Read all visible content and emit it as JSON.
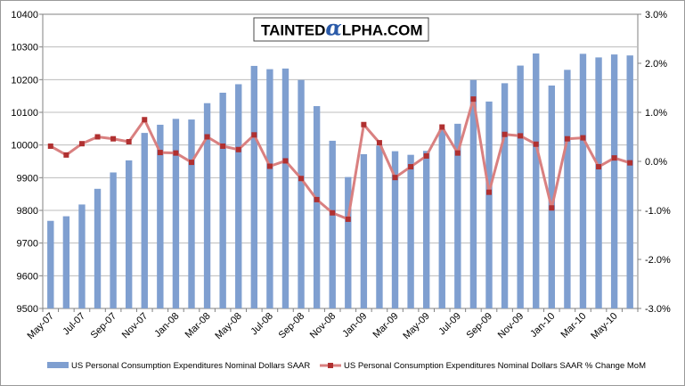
{
  "logo": {
    "part1": "TAINTED",
    "part2": "α",
    "part3": "LPHA.COM"
  },
  "chart_data": {
    "type": "bar+line",
    "title": "",
    "categories": [
      "May-07",
      "Jun-07",
      "Jul-07",
      "Aug-07",
      "Sep-07",
      "Oct-07",
      "Nov-07",
      "Dec-07",
      "Jan-08",
      "Feb-08",
      "Mar-08",
      "Apr-08",
      "May-08",
      "Jun-08",
      "Jul-08",
      "Aug-08",
      "Sep-08",
      "Oct-08",
      "Nov-08",
      "Dec-08",
      "Jan-09",
      "Feb-09",
      "Mar-09",
      "Apr-09",
      "May-09",
      "Jun-09",
      "Jul-09",
      "Aug-09",
      "Sep-09",
      "Oct-09",
      "Nov-09",
      "Dec-09",
      "Jan-10",
      "Feb-10",
      "Mar-10",
      "Apr-10",
      "May-10",
      "Jun-10"
    ],
    "x_tick_labels": [
      "May-07",
      "Jul-07",
      "Sep-07",
      "Nov-07",
      "Jan-08",
      "Mar-08",
      "May-08",
      "Jul-08",
      "Sep-08",
      "Nov-08",
      "Jan-09",
      "Mar-09",
      "May-09",
      "Jul-09",
      "Sep-09",
      "Nov-09",
      "Jan-10",
      "Mar-10",
      "May-10"
    ],
    "series": [
      {
        "name": "US Personal Consumption Expenditures Nominal Dollars SAAR",
        "type": "bar",
        "axis": "left",
        "color": "#7f9fd0",
        "values": [
          9768,
          9782,
          9818,
          9866,
          9916,
          9953,
          10037,
          10062,
          10080,
          10078,
          10128,
          10160,
          10186,
          10242,
          10232,
          10234,
          10199,
          10119,
          10013,
          9902,
          9972,
          9998,
          9981,
          9970,
          9982,
          10048,
          10065,
          10199,
          10133,
          10189,
          10243,
          10280,
          10182,
          10230,
          10279,
          10268,
          10277,
          10274
        ]
      },
      {
        "name": "US Personal Consumption Expenditures Nominal Dollars SAAR % Change MoM",
        "type": "line",
        "axis": "right",
        "color": "#d98080",
        "values": [
          0.31,
          0.13,
          0.36,
          0.5,
          0.46,
          0.4,
          0.85,
          0.18,
          0.17,
          -0.02,
          0.5,
          0.31,
          0.24,
          0.54,
          -0.1,
          0.01,
          -0.35,
          -0.78,
          -1.05,
          -1.18,
          0.75,
          0.38,
          -0.33,
          -0.11,
          0.11,
          0.7,
          0.17,
          1.27,
          -0.63,
          0.55,
          0.52,
          0.35,
          -0.95,
          0.46,
          0.48,
          -0.11,
          0.07,
          -0.03
        ]
      }
    ],
    "left_axis": {
      "min": 9500,
      "max": 10400,
      "step": 100,
      "tick_labels": [
        "9500",
        "9600",
        "9700",
        "9800",
        "9900",
        "10000",
        "10100",
        "10200",
        "10300",
        "10400"
      ]
    },
    "right_axis": {
      "min": -3.0,
      "max": 3.0,
      "step": 1.0,
      "tick_labels": [
        "-3.0%",
        "-2.0%",
        "-1.0%",
        "0.0%",
        "1.0%",
        "2.0%",
        "3.0%"
      ]
    },
    "grid": true,
    "legend_position": "bottom",
    "xlabel": "",
    "ylabel": ""
  }
}
